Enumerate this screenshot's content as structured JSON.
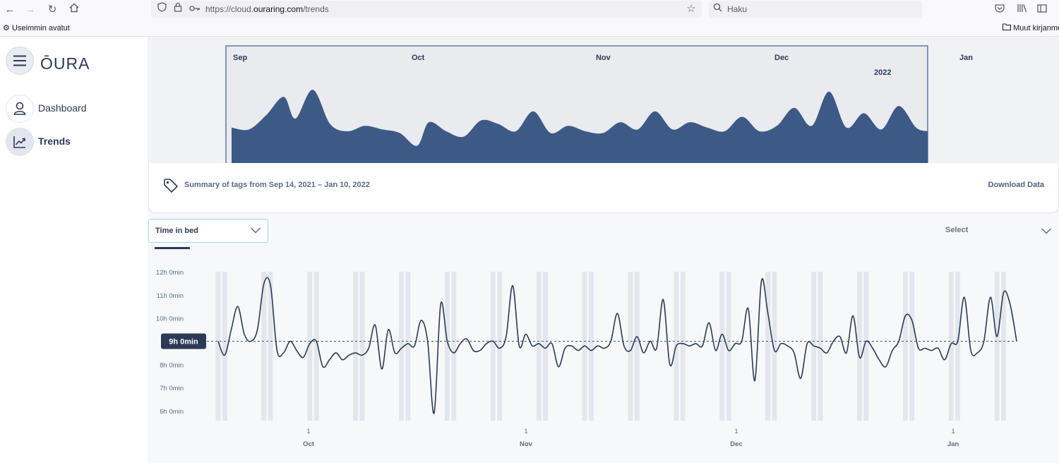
{
  "browser": {
    "url_host": "https://cloud.",
    "url_domain": "ouraring.com",
    "url_path": "/trends",
    "search_placeholder": "Haku",
    "bookmark_left": "Useimmin avatut",
    "bookmark_right": "Muut kirjanme"
  },
  "app": {
    "logo": "ŌURA",
    "nav": [
      {
        "label": "Dashboard",
        "icon": "user-icon",
        "active": false
      },
      {
        "label": "Trends",
        "icon": "trend-chart-icon",
        "active": true
      }
    ]
  },
  "summary": {
    "text": "Summary of tags from Sep 14, 2021 – Jan 10, 2022",
    "download": "Download Data"
  },
  "controls": {
    "metric": "Time in bed",
    "select": "Select"
  },
  "colors": {
    "accent": "#2b3a55",
    "area_fill": "#3d5a87",
    "badge": "#2b3a55"
  },
  "chart_data": [
    {
      "type": "area",
      "months": [
        "Sep",
        "Oct",
        "Nov",
        "Dec",
        "Jan"
      ],
      "year_label": "2022",
      "y": [
        {
          "x": 0,
          "v": 8.5
        },
        {
          "x": 3,
          "v": 8.4
        },
        {
          "x": 6,
          "v": 9.2
        },
        {
          "x": 9,
          "v": 10.2
        },
        {
          "x": 11,
          "v": 9.0
        },
        {
          "x": 14,
          "v": 10.6
        },
        {
          "x": 17,
          "v": 8.7
        },
        {
          "x": 20,
          "v": 8.3
        },
        {
          "x": 23,
          "v": 8.6
        },
        {
          "x": 26,
          "v": 8.4
        },
        {
          "x": 29,
          "v": 8.2
        },
        {
          "x": 32,
          "v": 7.5
        },
        {
          "x": 34,
          "v": 8.8
        },
        {
          "x": 37,
          "v": 8.3
        },
        {
          "x": 40,
          "v": 8.0
        },
        {
          "x": 43,
          "v": 8.9
        },
        {
          "x": 46,
          "v": 8.7
        },
        {
          "x": 49,
          "v": 8.3
        },
        {
          "x": 52,
          "v": 9.4
        },
        {
          "x": 55,
          "v": 8.2
        },
        {
          "x": 58,
          "v": 8.6
        },
        {
          "x": 61,
          "v": 8.3
        },
        {
          "x": 64,
          "v": 8.2
        },
        {
          "x": 67,
          "v": 8.8
        },
        {
          "x": 70,
          "v": 8.4
        },
        {
          "x": 73,
          "v": 9.4
        },
        {
          "x": 76,
          "v": 8.4
        },
        {
          "x": 79,
          "v": 8.8
        },
        {
          "x": 82,
          "v": 8.5
        },
        {
          "x": 85,
          "v": 8.3
        },
        {
          "x": 88,
          "v": 9.1
        },
        {
          "x": 91,
          "v": 8.3
        },
        {
          "x": 94,
          "v": 8.6
        },
        {
          "x": 97,
          "v": 9.6
        },
        {
          "x": 100,
          "v": 8.6
        },
        {
          "x": 103,
          "v": 10.5
        },
        {
          "x": 106,
          "v": 8.5
        },
        {
          "x": 109,
          "v": 9.3
        },
        {
          "x": 112,
          "v": 8.4
        },
        {
          "x": 115,
          "v": 9.7
        },
        {
          "x": 118,
          "v": 8.5
        },
        {
          "x": 120,
          "v": 8.3
        }
      ]
    },
    {
      "type": "line",
      "y_ticks": [
        "12h 0min",
        "11h 0min",
        "10h 0min",
        "9h 0min",
        "8h 0min",
        "7h 0min",
        "6h 0min"
      ],
      "average_label": "9h 0min",
      "average": 9.0,
      "ylim": [
        6,
        12
      ],
      "x_tick_days": [
        "1",
        "1",
        "1",
        "1"
      ],
      "x_tick_months": [
        "Oct",
        "Nov",
        "Dec",
        "Jan"
      ],
      "series": [
        {
          "values": [
            9.0,
            8.4,
            9.5,
            10.5,
            9.3,
            9.0,
            9.5,
            11.5,
            11.4,
            8.6,
            8.5,
            9.0,
            8.6,
            8.3,
            8.9,
            9.0,
            7.9,
            8.2,
            8.5,
            8.2,
            8.4,
            8.5,
            8.4,
            8.7,
            9.7,
            7.8,
            9.5,
            8.5,
            8.7,
            8.9,
            8.8,
            9.9,
            9.0,
            5.9,
            10.6,
            9.0,
            8.5,
            8.9,
            9.1,
            8.6,
            8.6,
            8.9,
            9.0,
            8.7,
            9.2,
            11.4,
            8.8,
            9.3,
            8.8,
            8.9,
            8.7,
            8.9,
            7.9,
            8.7,
            8.8,
            8.6,
            8.8,
            8.6,
            8.8,
            8.7,
            9.0,
            10.2,
            8.8,
            8.6,
            9.2,
            8.5,
            9.0,
            8.7,
            10.8,
            8.0,
            8.8,
            8.9,
            8.8,
            8.9,
            8.8,
            9.8,
            8.6,
            9.3,
            8.6,
            8.9,
            9.0,
            10.4,
            7.3,
            11.6,
            10.2,
            8.6,
            8.9,
            8.8,
            8.5,
            7.4,
            8.9,
            8.8,
            8.7,
            8.5,
            9.0,
            9.2,
            8.5,
            10.1,
            8.3,
            9.0,
            8.7,
            8.2,
            7.9,
            8.6,
            9.0,
            10.1,
            9.9,
            8.7,
            8.7,
            8.6,
            8.7,
            8.2,
            8.9,
            9.0,
            10.9,
            8.6,
            8.5,
            9.0,
            10.9,
            9.2,
            11.1,
            10.6,
            9.0
          ]
        }
      ]
    }
  ]
}
